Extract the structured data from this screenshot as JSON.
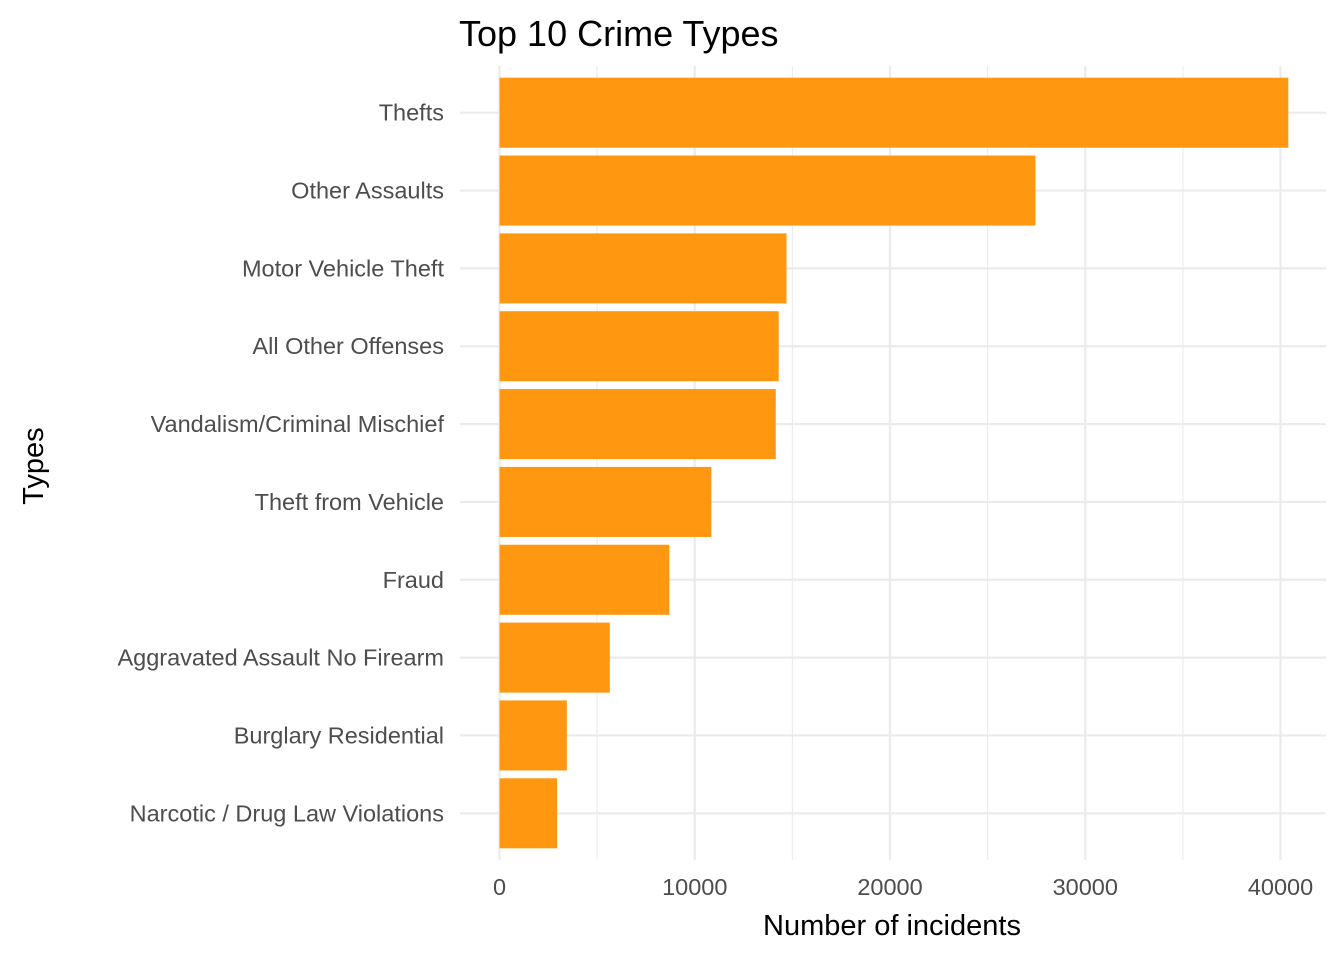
{
  "chart_data": {
    "type": "bar",
    "orientation": "horizontal",
    "title": "Top 10 Crime Types",
    "xlabel": "Number of incidents",
    "ylabel": "Types",
    "categories": [
      "Thefts",
      "Other Assaults",
      "Motor Vehicle Theft",
      "All Other Offenses",
      "Vandalism/Criminal Mischief",
      "Theft from Vehicle",
      "Fraud",
      "Aggravated Assault No Firearm",
      "Burglary Residential",
      "Narcotic / Drug Law Violations"
    ],
    "values": [
      40400,
      27450,
      14700,
      14300,
      14150,
      10850,
      8700,
      5650,
      3450,
      2950
    ],
    "xlim": [
      0,
      42350
    ],
    "x_ticks": [
      0,
      10000,
      20000,
      30000,
      40000
    ],
    "grid": true,
    "bar_color": "#ff9810",
    "legend": "none"
  }
}
